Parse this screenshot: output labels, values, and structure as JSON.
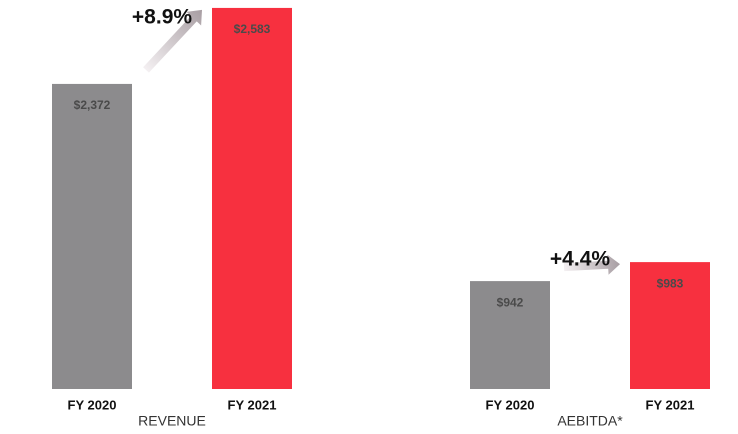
{
  "chart_data": [
    {
      "type": "bar",
      "x_label": "REVENUE",
      "annotation": "+8.9%",
      "categories": [
        "FY 2020",
        "FY 2021"
      ],
      "values": [
        2372,
        2583
      ],
      "value_labels": [
        "$2,372",
        "$2,583"
      ],
      "colors": [
        "#8c8b8d",
        "#f7303f"
      ],
      "ylim": [
        1525,
        2605
      ]
    },
    {
      "type": "bar",
      "x_label": "AEBITDA*",
      "annotation": "+4.4%",
      "categories": [
        "FY 2020",
        "FY 2021"
      ],
      "values": [
        942,
        983
      ],
      "value_labels": [
        "$942",
        "$983"
      ],
      "colors": [
        "#8c8b8d",
        "#f7303f"
      ],
      "ylim": [
        709,
        1549
      ]
    }
  ]
}
